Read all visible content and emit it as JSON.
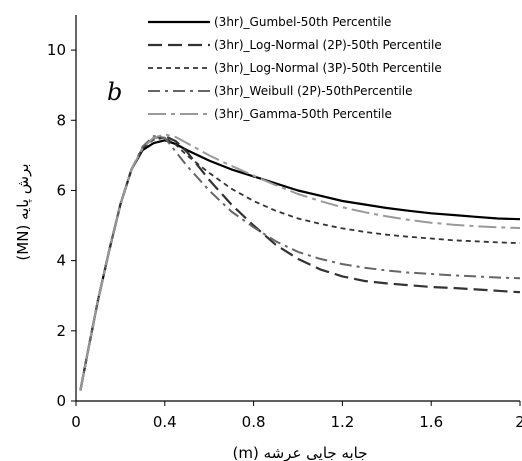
{
  "chart_data": {
    "type": "line",
    "xlabel": "جابه جایی عرشه (m)",
    "ylabel": "برش پایه (MN)",
    "panel_label": "b",
    "xlim": [
      0,
      2
    ],
    "ylim": [
      0,
      11
    ],
    "x_ticks": [
      0,
      0.4,
      0.8,
      1.2,
      1.6,
      2
    ],
    "x_tick_labels": [
      "0",
      "0.4",
      "0.8",
      "1.2",
      "1.6",
      "2"
    ],
    "y_ticks": [
      0,
      2,
      4,
      6,
      8,
      10
    ],
    "y_tick_labels": [
      "0",
      "2",
      "4",
      "6",
      "8",
      "10"
    ],
    "grid": false,
    "legend_position": "top-right",
    "series": [
      {
        "name": "(3hr)_Gumbel-50th Percentile",
        "color": "#000000",
        "dash": "solid",
        "x": [
          0.02,
          0.05,
          0.1,
          0.15,
          0.2,
          0.25,
          0.3,
          0.35,
          0.4,
          0.45,
          0.5,
          0.6,
          0.7,
          0.8,
          0.9,
          1.0,
          1.1,
          1.2,
          1.3,
          1.4,
          1.5,
          1.6,
          1.7,
          1.8,
          1.9,
          2.0
        ],
        "y": [
          0.3,
          1.3,
          2.9,
          4.3,
          5.6,
          6.6,
          7.15,
          7.35,
          7.43,
          7.32,
          7.15,
          6.85,
          6.6,
          6.4,
          6.2,
          6.0,
          5.85,
          5.7,
          5.6,
          5.5,
          5.42,
          5.35,
          5.3,
          5.25,
          5.2,
          5.18
        ]
      },
      {
        "name": "(3hr)_Log-Normal (2P)-50th Percentile",
        "color": "#333333",
        "dash": "long-dash",
        "x": [
          0.02,
          0.05,
          0.1,
          0.15,
          0.2,
          0.25,
          0.3,
          0.35,
          0.4,
          0.45,
          0.5,
          0.6,
          0.7,
          0.8,
          0.9,
          1.0,
          1.1,
          1.2,
          1.3,
          1.4,
          1.5,
          1.6,
          1.7,
          1.8,
          1.9,
          2.0
        ],
        "y": [
          0.3,
          1.3,
          2.9,
          4.3,
          5.6,
          6.6,
          7.2,
          7.5,
          7.55,
          7.4,
          7.1,
          6.3,
          5.6,
          5.0,
          4.45,
          4.05,
          3.75,
          3.55,
          3.42,
          3.35,
          3.3,
          3.25,
          3.22,
          3.18,
          3.14,
          3.1
        ]
      },
      {
        "name": "(3hr)_Log-Normal (3P)-50th Percentile",
        "color": "#333333",
        "dash": "short-dash",
        "x": [
          0.02,
          0.05,
          0.1,
          0.15,
          0.2,
          0.25,
          0.3,
          0.35,
          0.4,
          0.45,
          0.5,
          0.6,
          0.7,
          0.8,
          0.9,
          1.0,
          1.1,
          1.2,
          1.3,
          1.4,
          1.5,
          1.6,
          1.7,
          1.8,
          1.9,
          2.0
        ],
        "y": [
          0.3,
          1.3,
          2.9,
          4.3,
          5.6,
          6.6,
          7.2,
          7.45,
          7.5,
          7.3,
          7.0,
          6.5,
          6.05,
          5.7,
          5.42,
          5.2,
          5.05,
          4.92,
          4.82,
          4.74,
          4.68,
          4.63,
          4.58,
          4.55,
          4.52,
          4.5
        ]
      },
      {
        "name": "(3hr)_Weibull (2P)-50thPercentile",
        "color": "#666666",
        "dash": "dash-dot",
        "x": [
          0.02,
          0.05,
          0.1,
          0.15,
          0.2,
          0.25,
          0.3,
          0.35,
          0.4,
          0.45,
          0.5,
          0.6,
          0.7,
          0.8,
          0.9,
          1.0,
          1.1,
          1.2,
          1.3,
          1.4,
          1.5,
          1.6,
          1.7,
          1.8,
          1.9,
          2.0
        ],
        "y": [
          0.3,
          1.3,
          2.9,
          4.3,
          5.6,
          6.6,
          7.25,
          7.55,
          7.5,
          7.1,
          6.7,
          6.0,
          5.4,
          4.95,
          4.55,
          4.25,
          4.05,
          3.9,
          3.8,
          3.72,
          3.66,
          3.62,
          3.58,
          3.55,
          3.52,
          3.5
        ]
      },
      {
        "name": "(3hr)_Gamma-50th Percentile",
        "color": "#999999",
        "dash": "long-dash-dot",
        "x": [
          0.02,
          0.05,
          0.1,
          0.15,
          0.2,
          0.25,
          0.3,
          0.35,
          0.4,
          0.45,
          0.5,
          0.6,
          0.7,
          0.8,
          0.9,
          1.0,
          1.1,
          1.2,
          1.3,
          1.4,
          1.5,
          1.6,
          1.7,
          1.8,
          1.9,
          2.0
        ],
        "y": [
          0.3,
          1.3,
          2.9,
          4.3,
          5.6,
          6.6,
          7.2,
          7.5,
          7.6,
          7.52,
          7.35,
          7.0,
          6.7,
          6.42,
          6.15,
          5.9,
          5.7,
          5.52,
          5.38,
          5.26,
          5.16,
          5.08,
          5.02,
          4.98,
          4.95,
          4.93
        ]
      }
    ]
  }
}
